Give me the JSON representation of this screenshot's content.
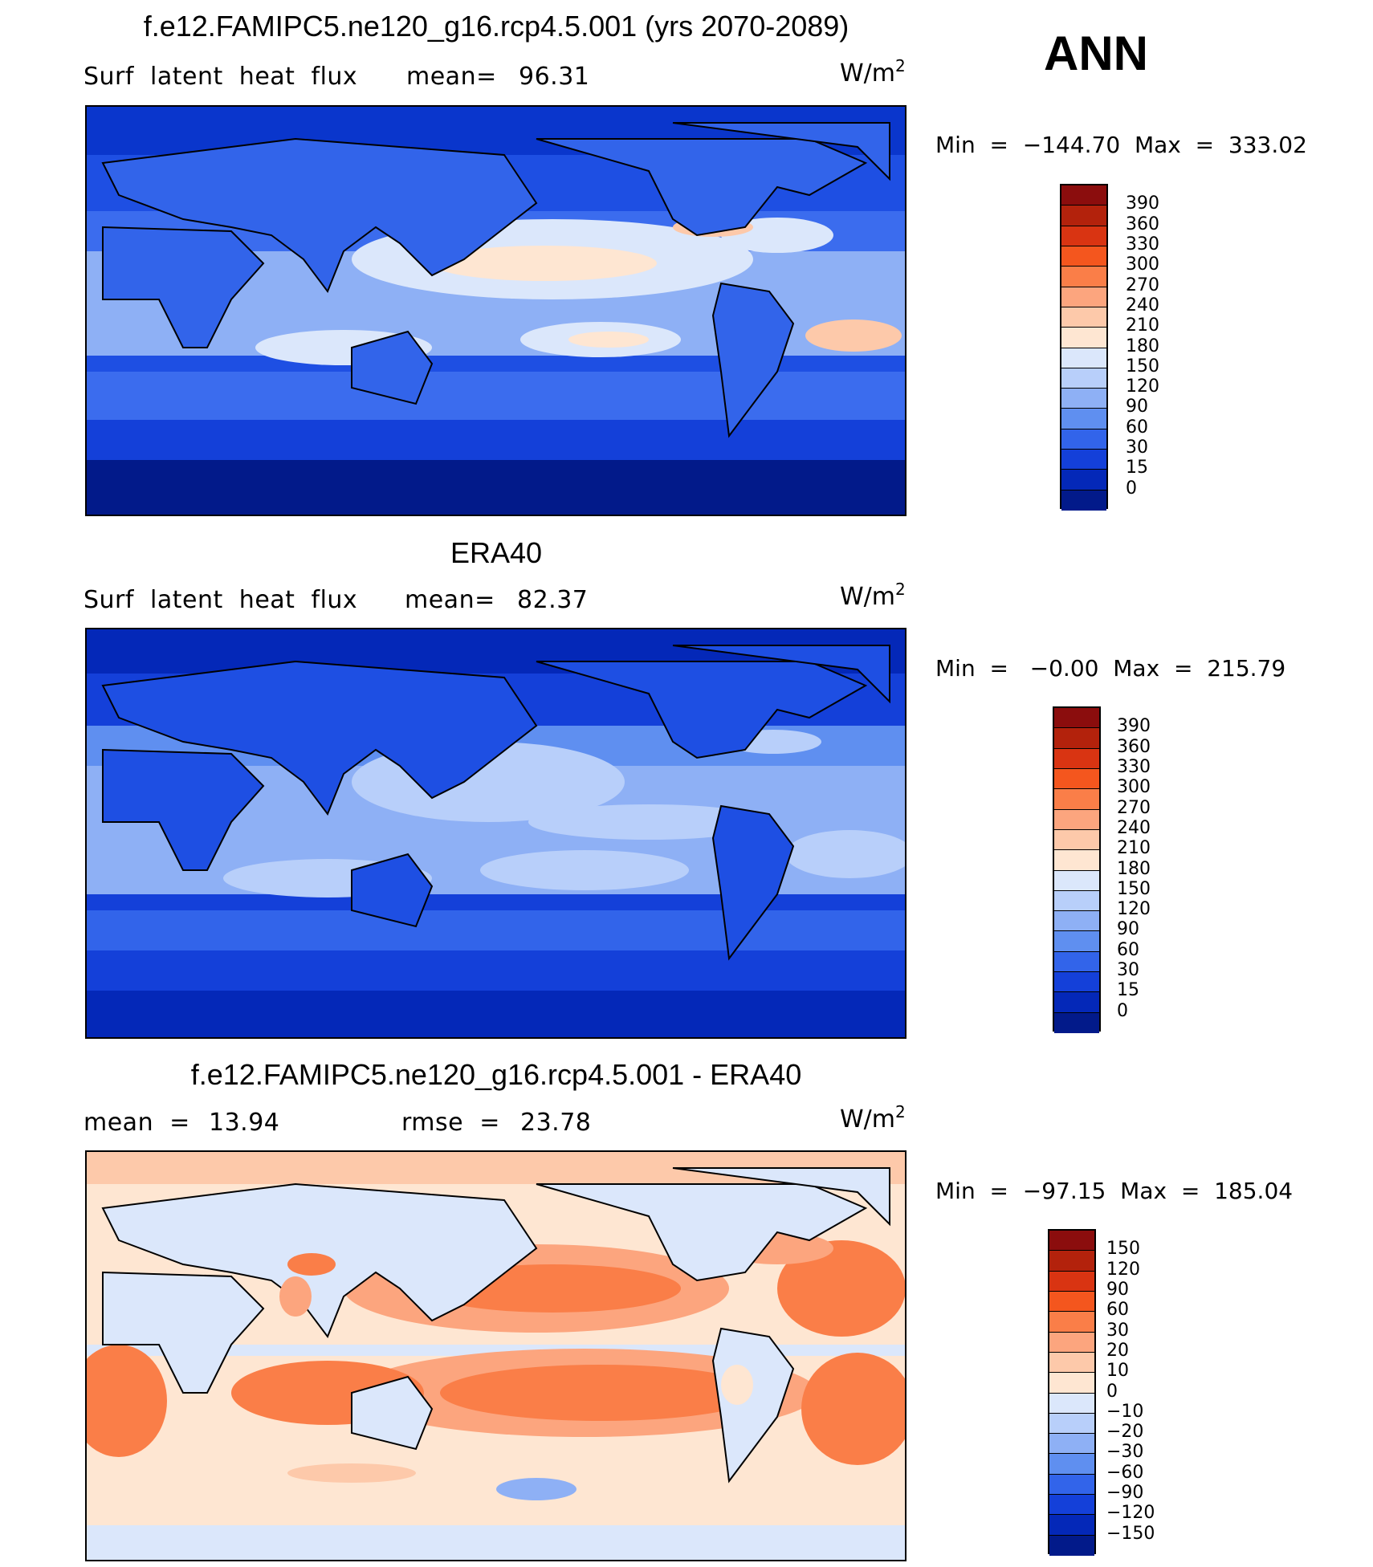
{
  "season": "ANN",
  "units_base": "W/m",
  "units_exp": "2",
  "panels": [
    {
      "title": "f.e12.FAMIPC5.ne120_g16.rcp4.5.001 (yrs 2070-2089)",
      "left_label": "Surf  latent  heat  flux",
      "stat_label": "mean=",
      "stat_value": "96.31",
      "minmax": "Min  =  −144.70  Max  =  333.02",
      "colorbar": {
        "levels": [
          "390",
          "360",
          "330",
          "300",
          "270",
          "240",
          "210",
          "180",
          "150",
          "120",
          "90",
          "60",
          "30",
          "15",
          "0"
        ],
        "colors": [
          "#8b0d0d",
          "#b3220c",
          "#d93412",
          "#f4561e",
          "#fa7e48",
          "#fca57e",
          "#fdc9aa",
          "#fee6d2",
          "#dbe7fb",
          "#b8cffa",
          "#8eb0f5",
          "#5f8ff0",
          "#3264ea",
          "#1440d9",
          "#0428b8",
          "#021a8a"
        ]
      }
    },
    {
      "title": "ERA40",
      "left_label": "Surf  latent  heat  flux",
      "stat_label": "mean=",
      "stat_value": "82.37",
      "minmax": "Min  =   −0.00  Max  =  215.79",
      "colorbar": {
        "levels": [
          "390",
          "360",
          "330",
          "300",
          "270",
          "240",
          "210",
          "180",
          "150",
          "120",
          "90",
          "60",
          "30",
          "15",
          "0"
        ],
        "colors": [
          "#8b0d0d",
          "#b3220c",
          "#d93412",
          "#f4561e",
          "#fa7e48",
          "#fca57e",
          "#fdc9aa",
          "#fee6d2",
          "#dbe7fb",
          "#b8cffa",
          "#8eb0f5",
          "#5f8ff0",
          "#3264ea",
          "#1440d9",
          "#0428b8",
          "#021a8a"
        ]
      }
    },
    {
      "title": "f.e12.FAMIPC5.ne120_g16.rcp4.5.001 - ERA40",
      "left_label": "mean  =",
      "left_value": "13.94",
      "stat_label": "rmse  =",
      "stat_value": "23.78",
      "minmax": "Min  =  −97.15  Max  =  185.04",
      "colorbar": {
        "levels": [
          "150",
          "120",
          "90",
          "60",
          "30",
          "20",
          "10",
          "0",
          "−10",
          "−20",
          "−30",
          "−60",
          "−90",
          "−120",
          "−150"
        ],
        "colors": [
          "#8b0d0d",
          "#b3220c",
          "#d93412",
          "#f4561e",
          "#fa7e48",
          "#fca57e",
          "#fdc9aa",
          "#fee6d2",
          "#dbe7fb",
          "#b8cffa",
          "#8eb0f5",
          "#5f8ff0",
          "#3264ea",
          "#1440d9",
          "#0428b8",
          "#021a8a"
        ]
      }
    }
  ]
}
